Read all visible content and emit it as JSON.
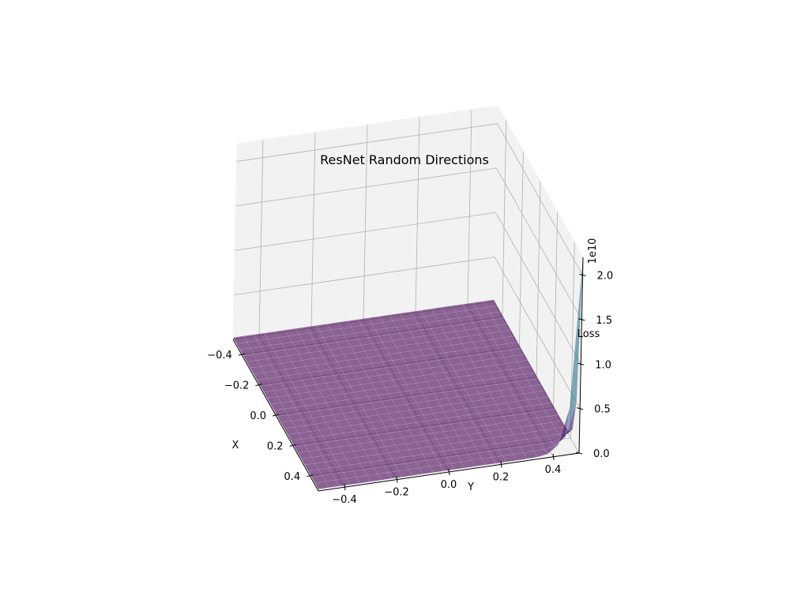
{
  "chart_data": {
    "type": "surface3d",
    "title": "ResNet Random Directions",
    "xlabel": "X",
    "ylabel": "Y",
    "zlabel": "Loss",
    "z_offset_label": "1e10",
    "xlim": [
      -0.5,
      0.5
    ],
    "ylim": [
      -0.5,
      0.5
    ],
    "zlim": [
      0,
      2.2
    ],
    "x_ticks": [
      -0.4,
      -0.2,
      0.0,
      0.2,
      0.4
    ],
    "x_tick_labels": [
      "−0.4",
      "−0.2",
      "0.0",
      "0.2",
      "0.4"
    ],
    "y_ticks": [
      -0.4,
      -0.2,
      0.0,
      0.2,
      0.4
    ],
    "y_tick_labels": [
      "−0.4",
      "−0.2",
      "0.0",
      "0.2",
      "0.4"
    ],
    "z_ticks": [
      0.0,
      0.5,
      1.0,
      1.5,
      2.0
    ],
    "z_tick_labels": [
      "0.0",
      "0.5",
      "1.0",
      "1.5",
      "2.0"
    ],
    "surface": {
      "x_range": [
        -0.5,
        0.5
      ],
      "y_range": [
        -0.5,
        0.5
      ],
      "grid_size": 25,
      "base_loss": 0.02,
      "peak_loss": 2.2,
      "peak_at": [
        0.5,
        0.5
      ],
      "colormap": "viridis",
      "alpha": 0.6
    },
    "grid": true
  }
}
